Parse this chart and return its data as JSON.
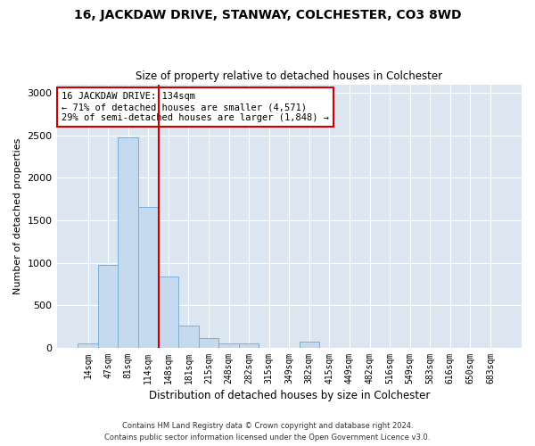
{
  "title_line1": "16, JACKDAW DRIVE, STANWAY, COLCHESTER, CO3 8WD",
  "title_line2": "Size of property relative to detached houses in Colchester",
  "xlabel": "Distribution of detached houses by size in Colchester",
  "ylabel": "Number of detached properties",
  "categories": [
    "14sqm",
    "47sqm",
    "81sqm",
    "114sqm",
    "148sqm",
    "181sqm",
    "215sqm",
    "248sqm",
    "282sqm",
    "315sqm",
    "349sqm",
    "382sqm",
    "415sqm",
    "449sqm",
    "482sqm",
    "516sqm",
    "549sqm",
    "583sqm",
    "616sqm",
    "650sqm",
    "683sqm"
  ],
  "values": [
    50,
    975,
    2480,
    1660,
    840,
    265,
    115,
    55,
    55,
    0,
    0,
    70,
    0,
    0,
    0,
    0,
    0,
    0,
    0,
    0,
    0
  ],
  "bar_color": "#c5d9ef",
  "bar_edge_color": "#7bafd4",
  "vline_x": 3.5,
  "vline_color": "#cc0000",
  "annotation_text": "16 JACKDAW DRIVE: 134sqm\n← 71% of detached houses are smaller (4,571)\n29% of semi-detached houses are larger (1,848) →",
  "annotation_box_color": "#cc0000",
  "ylim": [
    0,
    3100
  ],
  "yticks": [
    0,
    500,
    1000,
    1500,
    2000,
    2500,
    3000
  ],
  "background_color": "#dce6f1",
  "grid_color": "#ffffff",
  "footer_line1": "Contains HM Land Registry data © Crown copyright and database right 2024.",
  "footer_line2": "Contains public sector information licensed under the Open Government Licence v3.0."
}
